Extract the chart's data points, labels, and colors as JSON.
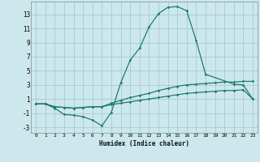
{
  "xlabel": "Humidex (Indice chaleur)",
  "xlim": [
    -0.5,
    23.5
  ],
  "ylim": [
    -3.8,
    14.8
  ],
  "yticks": [
    -3,
    -1,
    1,
    3,
    5,
    7,
    9,
    11,
    13
  ],
  "xticks": [
    0,
    1,
    2,
    3,
    4,
    5,
    6,
    7,
    8,
    9,
    10,
    11,
    12,
    13,
    14,
    15,
    16,
    17,
    18,
    19,
    20,
    21,
    22,
    23
  ],
  "background_color": "#cce8ec",
  "grid_color": "#aacfd4",
  "line_color": "#1e7a72",
  "lines": [
    {
      "x": [
        0,
        1,
        2,
        3,
        4,
        5,
        6,
        7,
        8,
        9,
        10,
        11,
        12,
        13,
        14,
        15,
        16,
        17,
        18,
        21,
        22,
        23
      ],
      "y": [
        0.3,
        0.3,
        -0.3,
        -1.2,
        -1.3,
        -1.5,
        -2.0,
        -2.8,
        -0.9,
        3.3,
        6.5,
        8.2,
        11.2,
        13.1,
        14.0,
        14.1,
        13.5,
        9.3,
        4.5,
        3.1,
        3.0,
        1.0
      ]
    },
    {
      "x": [
        0,
        1,
        2,
        3,
        4,
        5,
        6,
        7,
        8,
        9,
        10,
        11,
        12,
        13,
        14,
        15,
        16,
        17,
        18,
        19,
        20,
        21,
        22,
        23
      ],
      "y": [
        0.3,
        0.3,
        -0.1,
        -0.2,
        -0.3,
        -0.2,
        -0.1,
        -0.1,
        0.4,
        0.8,
        1.2,
        1.5,
        1.8,
        2.2,
        2.5,
        2.8,
        3.0,
        3.1,
        3.2,
        3.3,
        3.4,
        3.4,
        3.5,
        3.5
      ]
    },
    {
      "x": [
        0,
        1,
        2,
        3,
        4,
        5,
        6,
        7,
        8,
        9,
        10,
        11,
        12,
        13,
        14,
        15,
        16,
        17,
        18,
        19,
        20,
        21,
        22,
        23
      ],
      "y": [
        0.3,
        0.3,
        -0.1,
        -0.2,
        -0.3,
        -0.2,
        -0.1,
        -0.1,
        0.2,
        0.4,
        0.6,
        0.8,
        1.0,
        1.2,
        1.4,
        1.6,
        1.8,
        1.9,
        2.0,
        2.1,
        2.2,
        2.2,
        2.3,
        1.0
      ]
    }
  ]
}
